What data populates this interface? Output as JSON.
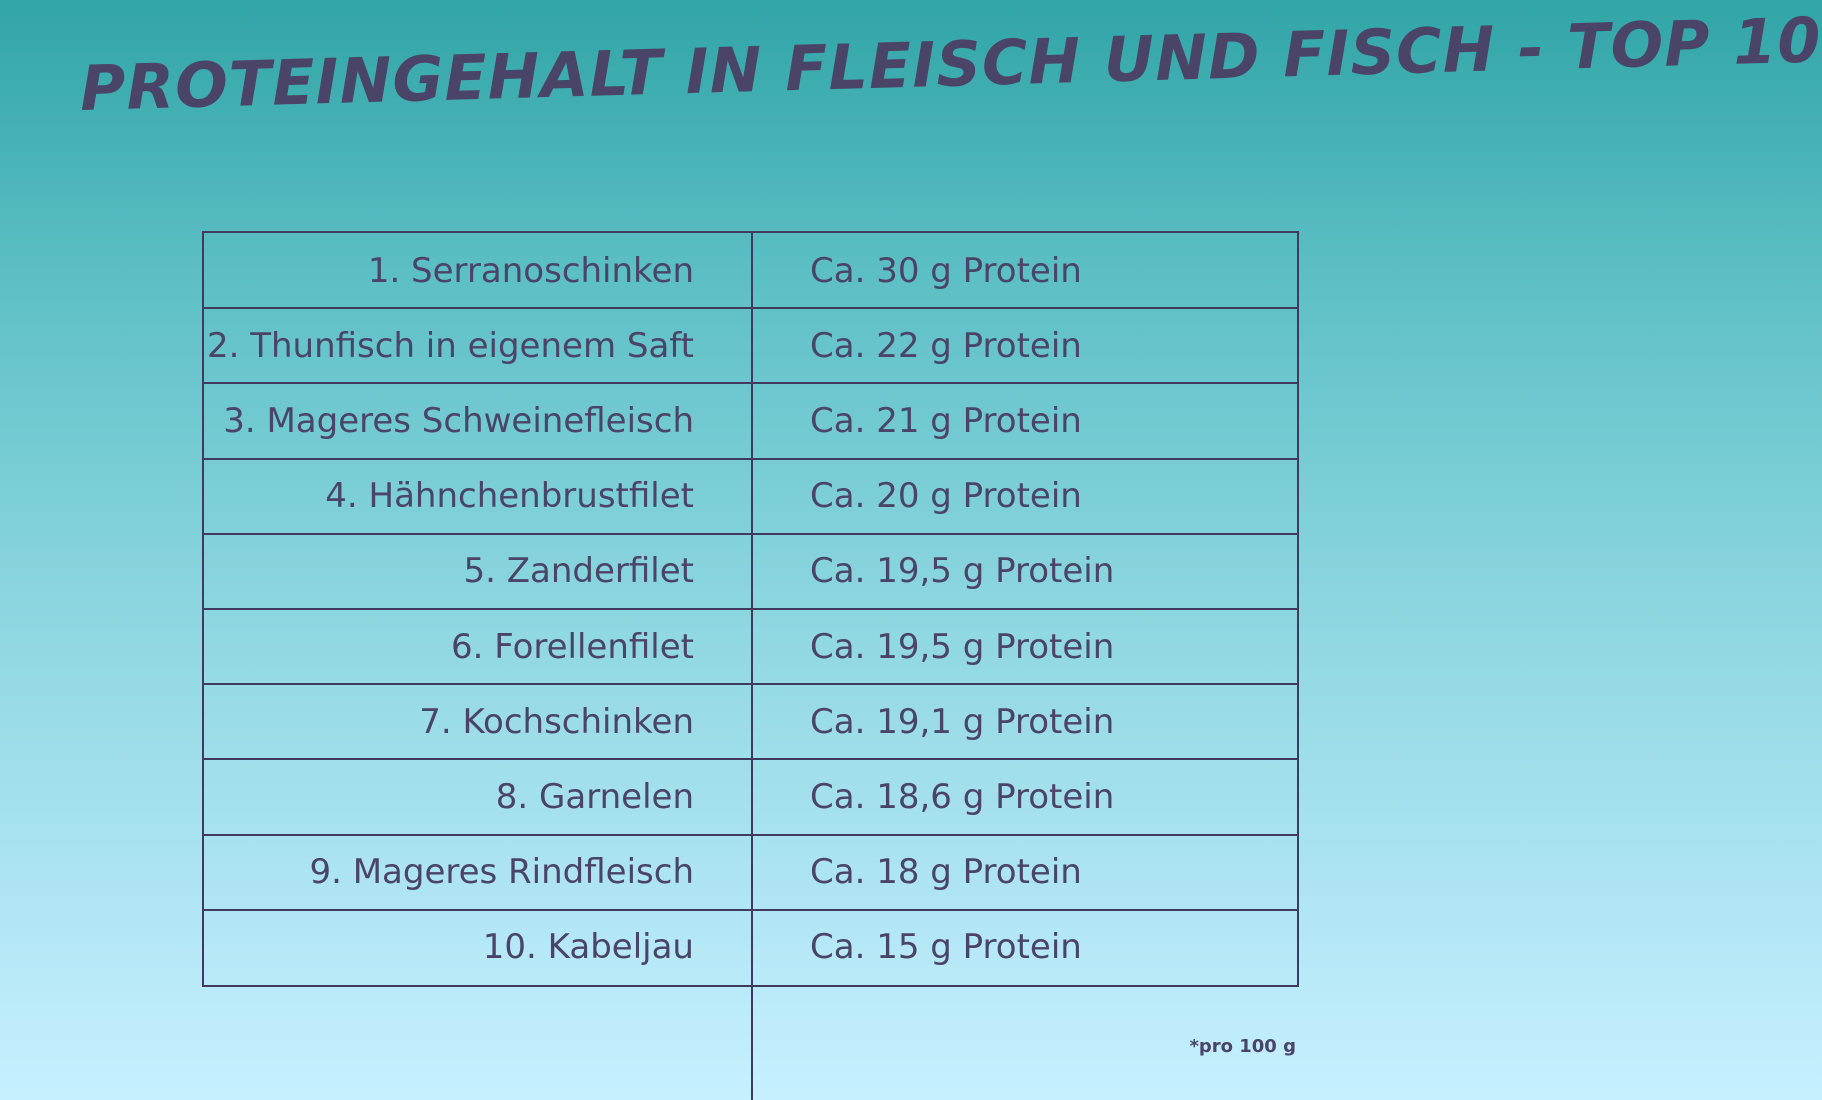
{
  "page": {
    "title": "PROTEINGEHALT IN FLEISCH UND FISCH - TOP 10",
    "footnote": "*pro 100 g"
  },
  "colors": {
    "text": "#4a4568",
    "lines": "#3f3a5e",
    "background_top": "#31a5a7",
    "background_bottom": "#c6f0ff"
  },
  "chart_data": {
    "type": "table",
    "title": "PROTEINGEHALT IN FLEISCH UND FISCH - TOP 10",
    "rows": [
      {
        "food": "1. Serranoschinken",
        "protein": "Ca. 30 g Protein",
        "value": 30
      },
      {
        "food": "2. Thunfisch in  eigenem Saft",
        "protein": "Ca. 22 g Protein",
        "value": 22
      },
      {
        "food": "3. Mageres Schweinefleisch",
        "protein": "Ca. 21 g Protein",
        "value": 21
      },
      {
        "food": "4. Hähnchenbrustfilet",
        "protein": "Ca. 20 g Protein",
        "value": 20
      },
      {
        "food": "5. Zanderfilet",
        "protein": "Ca. 19,5 g Protein",
        "value": 19.5
      },
      {
        "food": "6. Forellenfilet",
        "protein": "Ca. 19,5 g Protein",
        "value": 19.5
      },
      {
        "food": "7. Kochschinken",
        "protein": "Ca. 19,1 g Protein",
        "value": 19.1
      },
      {
        "food": "8. Garnelen",
        "protein": "Ca. 18,6 g Protein",
        "value": 18.6
      },
      {
        "food": "9. Mageres Rindfleisch",
        "protein": "Ca. 18 g Protein",
        "value": 18
      },
      {
        "food": "10. Kabeljau",
        "protein": "Ca. 15 g Protein",
        "value": 15
      }
    ],
    "footnote": "*pro 100 g"
  }
}
